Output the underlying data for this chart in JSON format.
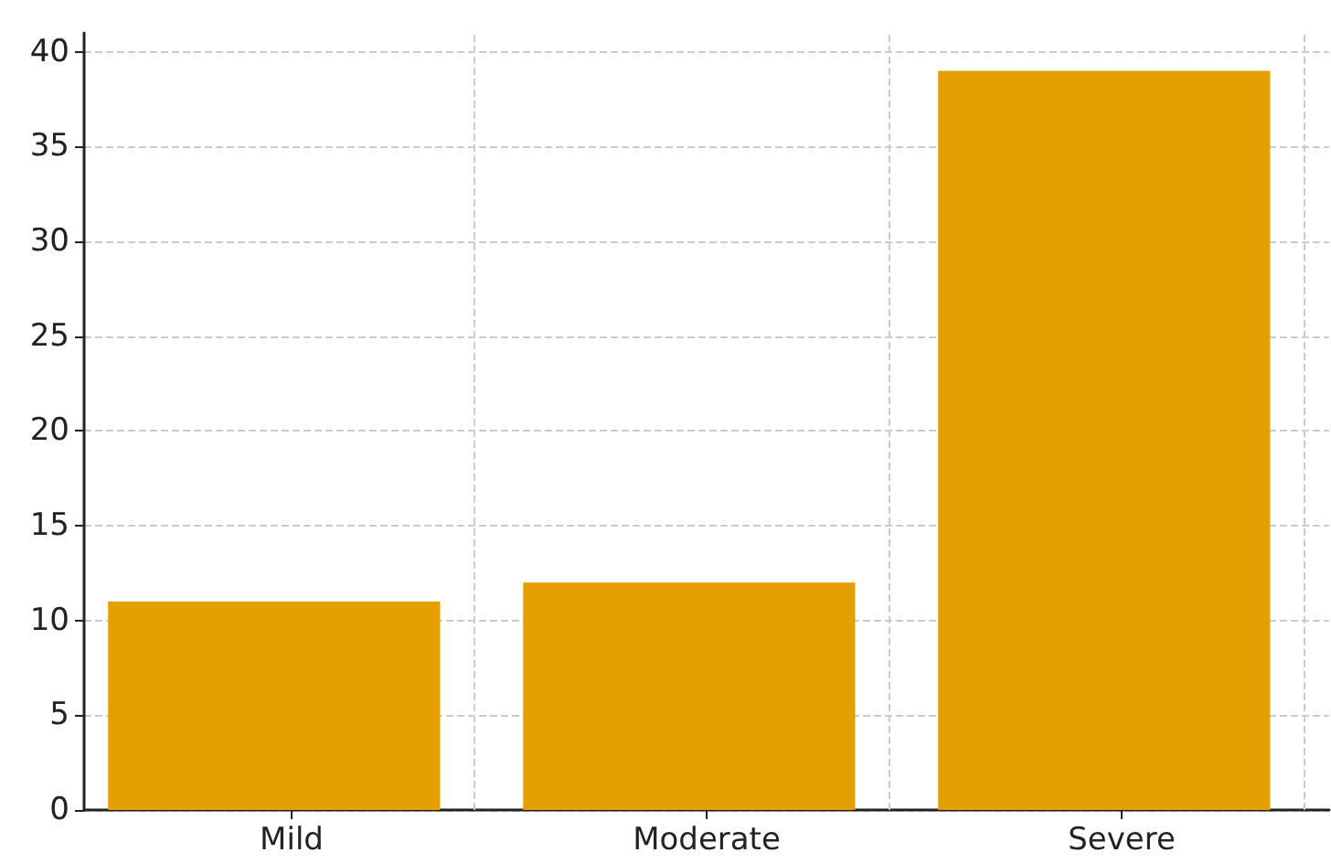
{
  "chart_data": {
    "type": "bar",
    "categories": [
      "Mild",
      "Moderate",
      "Severe"
    ],
    "values": [
      11,
      12,
      39
    ],
    "color": "#e69f00",
    "ylim": [
      0,
      41
    ],
    "yticks": [
      0,
      5,
      10,
      15,
      20,
      25,
      30,
      35,
      40
    ],
    "grid": true
  }
}
